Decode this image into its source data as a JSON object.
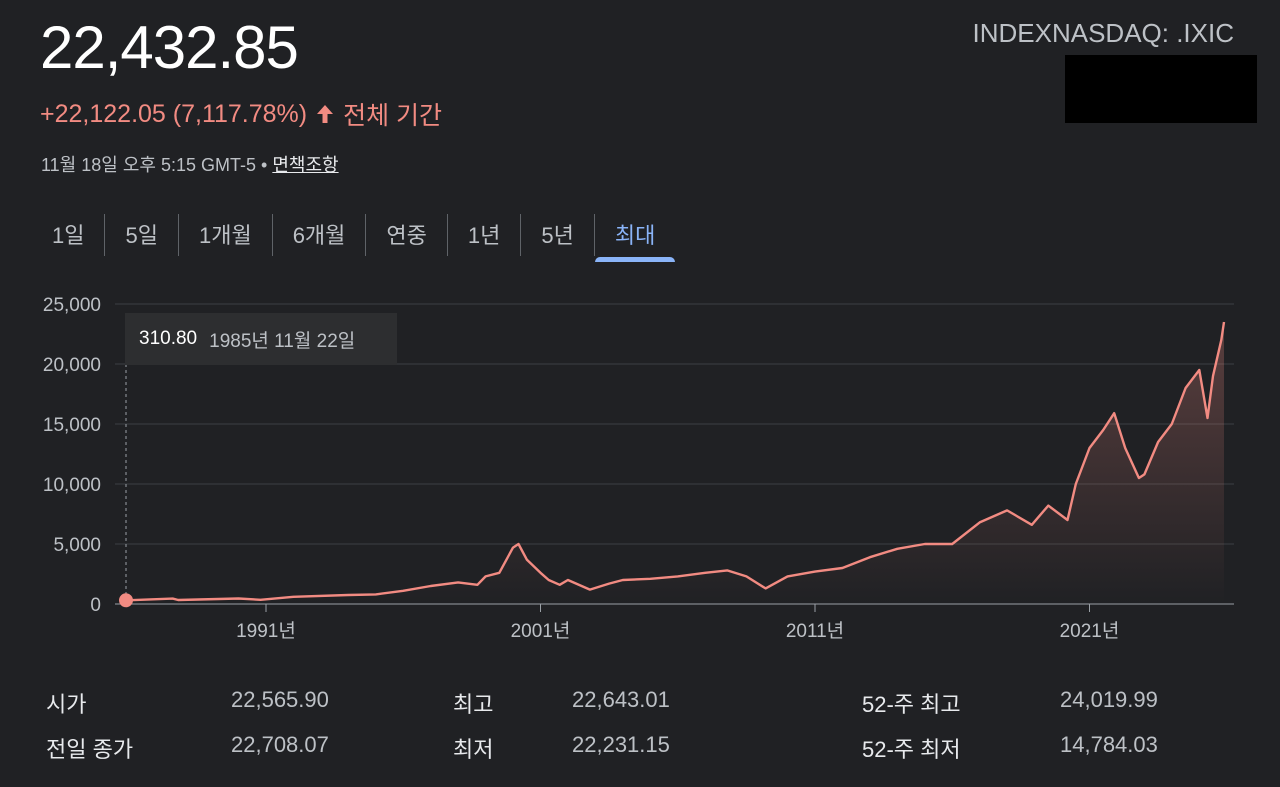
{
  "header": {
    "price": "22,432.85",
    "ticker": "INDEXNASDAQ: .IXIC",
    "change": "+22,122.05 (7,117.78%)",
    "period_label": "전체 기간",
    "timestamp": "11월 18일 오후 5:15 GMT-5",
    "separator": "•",
    "disclaimer": "면책조항"
  },
  "tabs": [
    {
      "label": "1일",
      "active": false
    },
    {
      "label": "5일",
      "active": false
    },
    {
      "label": "1개월",
      "active": false
    },
    {
      "label": "6개월",
      "active": false
    },
    {
      "label": "연중",
      "active": false
    },
    {
      "label": "1년",
      "active": false
    },
    {
      "label": "5년",
      "active": false
    },
    {
      "label": "최대",
      "active": true
    }
  ],
  "tooltip": {
    "value": "310.80",
    "date": "1985년 11월 22일"
  },
  "colors": {
    "line": "#f28b82",
    "accent": "#8ab4f8",
    "background": "#202124"
  },
  "stats": {
    "open_label": "시가",
    "open_value": "22,565.90",
    "prev_label": "전일 종가",
    "prev_value": "22,708.07",
    "high_label": "최고",
    "high_value": "22,643.01",
    "low_label": "최저",
    "low_value": "22,231.15",
    "w52_high_label": "52-주 최고",
    "w52_high_value": "24,019.99",
    "w52_low_label": "52-주 최저",
    "w52_low_value": "14,784.03"
  },
  "chart_data": {
    "type": "area",
    "x_ticks": [
      "1991년",
      "2001년",
      "2011년",
      "2021년"
    ],
    "x_tick_years": [
      1991,
      2001,
      2011,
      2021
    ],
    "y_ticks": [
      "0",
      "5,000",
      "10,000",
      "15,000",
      "20,000",
      "25,000"
    ],
    "ylim": [
      0,
      25000
    ],
    "xlim": [
      1985.9,
      2025.9
    ],
    "grid": true,
    "series": [
      {
        "x": [
          1985.9,
          1987.6,
          1987.8,
          1990.0,
          1990.8,
          1992.0,
          1994.0,
          1995.0,
          1996.0,
          1997.0,
          1998.0,
          1998.7,
          1999.0,
          1999.5,
          2000.0,
          2000.2,
          2000.5,
          2001.0,
          2001.3,
          2001.7,
          2002.0,
          2002.8,
          2003.5,
          2004.0,
          2005.0,
          2006.0,
          2007.0,
          2007.8,
          2008.5,
          2009.2,
          2010.0,
          2011.0,
          2012.0,
          2013.0,
          2014.0,
          2015.0,
          2016.0,
          2017.0,
          2018.0,
          2018.9,
          2019.5,
          2020.2,
          2020.5,
          2021.0,
          2021.5,
          2021.9,
          2022.3,
          2022.8,
          2023.0,
          2023.5,
          2024.0,
          2024.5,
          2025.0,
          2025.3,
          2025.5,
          2025.8,
          2025.9
        ],
        "y": [
          310.8,
          450,
          330,
          460,
          350,
          600,
          750,
          800,
          1100,
          1500,
          1800,
          1600,
          2300,
          2600,
          4700,
          5000,
          3700,
          2600,
          2000,
          1600,
          2000,
          1200,
          1700,
          2000,
          2100,
          2300,
          2600,
          2800,
          2300,
          1300,
          2300,
          2700,
          3000,
          3900,
          4600,
          5000,
          5000,
          6800,
          7800,
          6600,
          8200,
          7000,
          10000,
          13000,
          14500,
          15900,
          13000,
          10500,
          10800,
          13500,
          15000,
          18000,
          19500,
          15500,
          19000,
          22000,
          23500
        ]
      }
    ]
  }
}
